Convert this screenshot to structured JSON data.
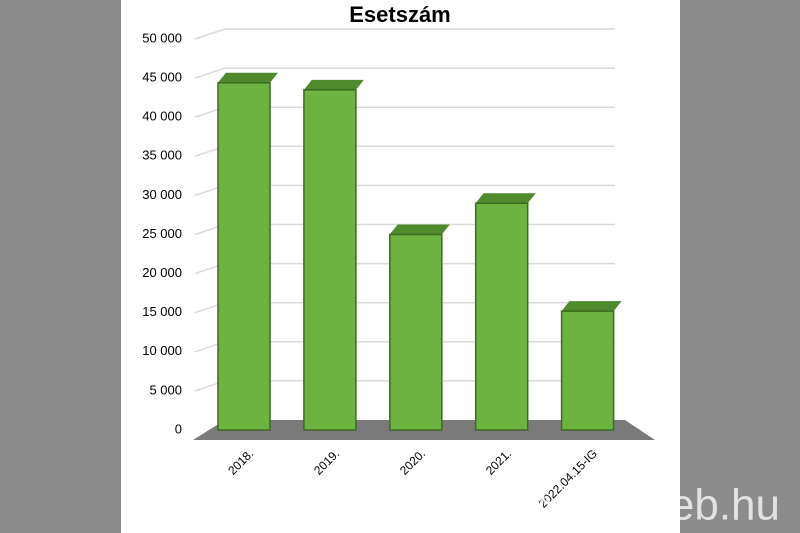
{
  "chart_data": {
    "type": "bar3d",
    "title": "Esetszám",
    "categories": [
      "2018.",
      "2019.",
      "2020.",
      "2021.",
      "2022.04.15-IG"
    ],
    "values": [
      44400,
      43500,
      25000,
      29000,
      15200
    ],
    "color": "#6db33f",
    "ylim": [
      0,
      50000
    ],
    "yticks": [
      0,
      {
        "value": 5000,
        "label": "5 000"
      },
      {
        "value": 10000,
        "label": "10 000"
      },
      {
        "value": 15000,
        "label": "15 000"
      },
      {
        "value": 20000,
        "label": "20 000"
      },
      {
        "value": 25000,
        "label": "25 000"
      },
      {
        "value": 30000,
        "label": "30 000"
      },
      {
        "value": 35000,
        "label": "35 000"
      },
      {
        "value": 40000,
        "label": "40 000"
      },
      {
        "value": 45000,
        "label": "45 000"
      },
      {
        "value": 50000,
        "label": "50 000"
      }
    ],
    "grid": true,
    "watermark": "www.unideb.hu"
  }
}
